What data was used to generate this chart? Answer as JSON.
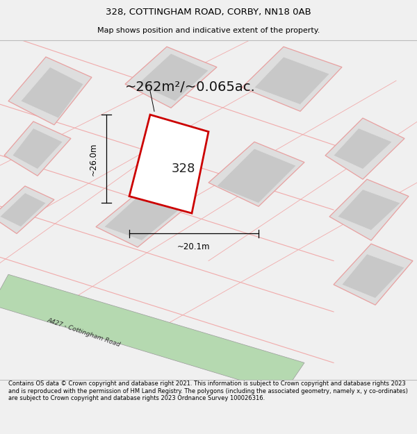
{
  "title": "328, COTTINGHAM ROAD, CORBY, NN18 0AB",
  "subtitle": "Map shows position and indicative extent of the property.",
  "footer": "Contains OS data © Crown copyright and database right 2021. This information is subject to Crown copyright and database rights 2023 and is reproduced with the permission of HM Land Registry. The polygons (including the associated geometry, namely x, y co-ordinates) are subject to Crown copyright and database rights 2023 Ordnance Survey 100026316.",
  "area_label": "~262m²/~0.065ac.",
  "width_label": "~20.1m",
  "height_label": "~26.0m",
  "property_number": "328",
  "bg_color": "#f0f0f0",
  "map_bg": "#f8f8f8",
  "road_color": "#b5d9b0",
  "building_fill": "#dedede",
  "building_stroke": "#e8a0a0",
  "highlight_stroke": "#cc0000",
  "road_label": "A427 - Cottingham Road",
  "road_line_color": "#f0aaaa"
}
